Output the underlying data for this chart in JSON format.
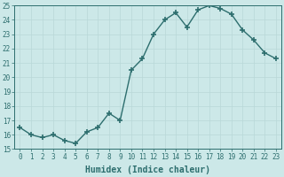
{
  "x": [
    0,
    1,
    2,
    3,
    4,
    5,
    6,
    7,
    8,
    9,
    10,
    11,
    12,
    13,
    14,
    15,
    16,
    17,
    18,
    19,
    20,
    21,
    22,
    23
  ],
  "y": [
    16.5,
    16.0,
    15.8,
    16.0,
    15.6,
    15.4,
    16.2,
    16.5,
    17.5,
    17.0,
    20.5,
    21.3,
    23.0,
    24.0,
    24.5,
    23.5,
    24.7,
    25.0,
    24.8,
    24.4,
    23.3,
    22.6,
    21.7,
    21.3
  ],
  "xlabel": "Humidex (Indice chaleur)",
  "xlim": [
    -0.5,
    23.5
  ],
  "ylim": [
    15,
    25
  ],
  "yticks": [
    15,
    16,
    17,
    18,
    19,
    20,
    21,
    22,
    23,
    24,
    25
  ],
  "xticks": [
    0,
    1,
    2,
    3,
    4,
    5,
    6,
    7,
    8,
    9,
    10,
    11,
    12,
    13,
    14,
    15,
    16,
    17,
    18,
    19,
    20,
    21,
    22,
    23
  ],
  "line_color": "#2d6e6e",
  "marker": "+",
  "marker_size": 4,
  "marker_lw": 1.2,
  "line_width": 1.0,
  "bg_color": "#cce8e8",
  "grid_color": "#b8d8d8",
  "font_color": "#2d6e6e",
  "font_family": "monospace",
  "font_size_ticks": 5.5,
  "font_size_xlabel": 7.0
}
